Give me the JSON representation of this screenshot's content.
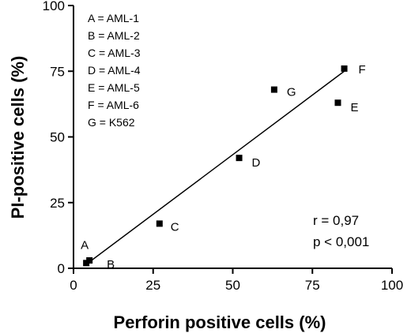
{
  "chart_data": {
    "type": "scatter",
    "title": "",
    "xlabel": "Perforin positive cells (%)",
    "ylabel": "PI-positive cells (%)",
    "xlim": [
      0,
      100
    ],
    "ylim": [
      0,
      100
    ],
    "xticks": [
      "0",
      "25",
      "50",
      "75",
      "100"
    ],
    "yticks": [
      "0",
      "25",
      "50",
      "75",
      "100"
    ],
    "grid": false,
    "points": [
      {
        "label": "A",
        "x": 4,
        "y": 2
      },
      {
        "label": "B",
        "x": 5,
        "y": 3
      },
      {
        "label": "C",
        "x": 27,
        "y": 17
      },
      {
        "label": "D",
        "x": 52,
        "y": 42
      },
      {
        "label": "E",
        "x": 83,
        "y": 63
      },
      {
        "label": "F",
        "x": 85,
        "y": 76
      },
      {
        "label": "G",
        "x": 63,
        "y": 68
      }
    ],
    "regression_line": {
      "x": [
        4,
        85
      ],
      "y": [
        1.5,
        75
      ]
    },
    "legend_placement": "top-left",
    "legend": [
      "A = AML-1",
      "B = AML-2",
      "C = AML-3",
      "D = AML-4",
      "E = AML-5",
      "F = AML-6",
      "G = K562"
    ],
    "annotations": [
      "r = 0,97",
      "p < 0,001"
    ]
  }
}
